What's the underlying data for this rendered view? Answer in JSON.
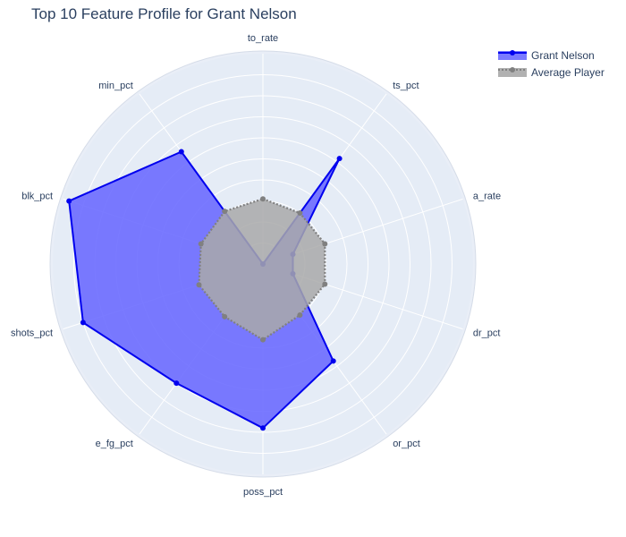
{
  "chart_data": {
    "type": "radar",
    "title": "Top 10 Feature Profile for Grant Nelson",
    "categories": [
      "to_rate",
      "ts_pct",
      "a_rate",
      "dr_pct",
      "or_pct",
      "poss_pct",
      "e_fg_pct",
      "shots_pct",
      "blk_pct",
      "min_pct"
    ],
    "radial_range": [
      0,
      1
    ],
    "radial_ticks": [
      0.1,
      0.2,
      0.3,
      0.4,
      0.5,
      0.6,
      0.7,
      0.8,
      0.9
    ],
    "series": [
      {
        "name": "Grant Nelson",
        "values": [
          0.0,
          0.62,
          0.15,
          0.15,
          0.57,
          0.78,
          0.7,
          0.9,
          0.97,
          0.66
        ],
        "line_color": "#0000ee",
        "fill_color": "#6b6bff",
        "line_style": "solid"
      },
      {
        "name": "Average Player",
        "values": [
          0.31,
          0.3,
          0.31,
          0.31,
          0.3,
          0.36,
          0.31,
          0.32,
          0.31,
          0.31
        ],
        "line_color": "#808080",
        "fill_color": "#a9a9a9",
        "line_style": "dotted"
      }
    ],
    "legend_position": "top-right",
    "grid": true,
    "polar_bgcolor": "#e5ecf6"
  }
}
